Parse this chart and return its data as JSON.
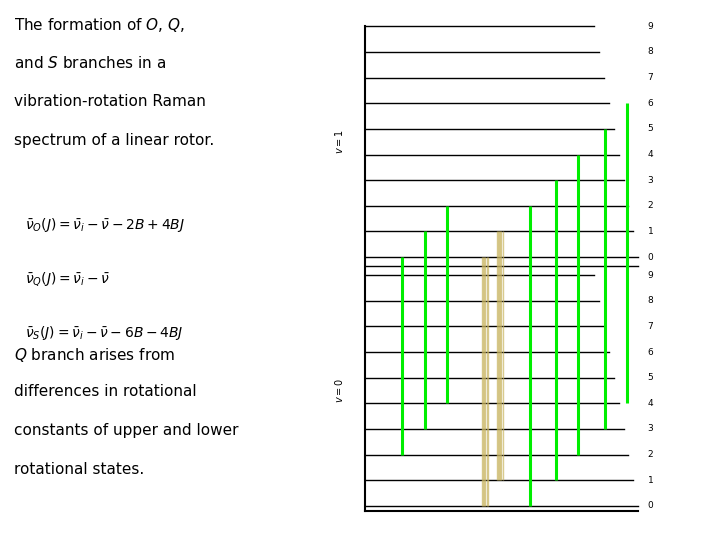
{
  "bg_color": "#ffffff",
  "title_lines": [
    "The formation of \\textit{O}, \\textit{Q},",
    "and \\textit{S} branches in a",
    "vibration-rotation Raman",
    "spectrum of a linear rotor."
  ],
  "eq_texts": [
    "$\\bar{\\nu}_O(J) = \\bar{\\nu}_i - \\bar{\\nu} - 2B + 4BJ$",
    "$\\bar{\\nu}_Q(J) = \\bar{\\nu}_i - \\bar{\\nu}$",
    "$\\bar{\\nu}_S(J) = \\bar{\\nu}_i - \\bar{\\nu} - 6B - 4BJ$"
  ],
  "caption_lines": [
    "\\textit{Q} branch arises from",
    "differences in rotational",
    "constants of upper and lower",
    "rotational states."
  ],
  "n_levels": 10,
  "green": "#00ee00",
  "tan": "#c8b560",
  "black": "#000000",
  "text_fontsize": 11,
  "eq_fontsize": 10,
  "cap_fontsize": 11
}
